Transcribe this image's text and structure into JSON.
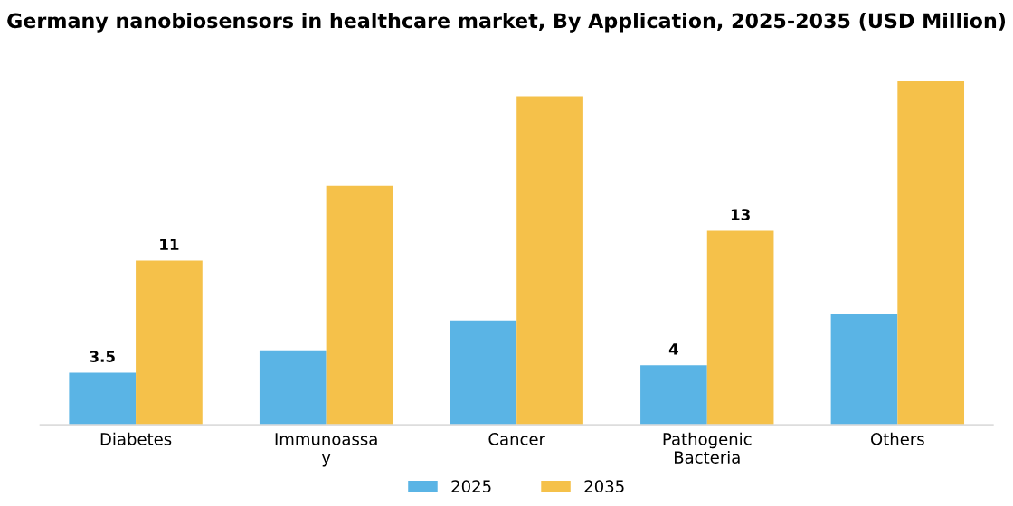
{
  "chart_data": {
    "type": "bar",
    "title": "Germany nanobiosensors in healthcare market, By Application, 2025-2035 (USD Million)",
    "categories": [
      "Diabetes",
      "Immunoassa\ny",
      "Cancer",
      "Pathogenic\nBacteria",
      "Others"
    ],
    "series": [
      {
        "name": "2025",
        "color": "#5ab4e5",
        "values": [
          3.5,
          5,
          7,
          4,
          7.4
        ],
        "value_labels": [
          "3.5",
          null,
          null,
          "4",
          null
        ]
      },
      {
        "name": "2035",
        "color": "#f5c14a",
        "values": [
          11,
          16,
          22,
          13,
          23
        ],
        "value_labels": [
          "11",
          null,
          null,
          "13",
          null
        ]
      }
    ],
    "legend": "bottom",
    "grid": false
  }
}
